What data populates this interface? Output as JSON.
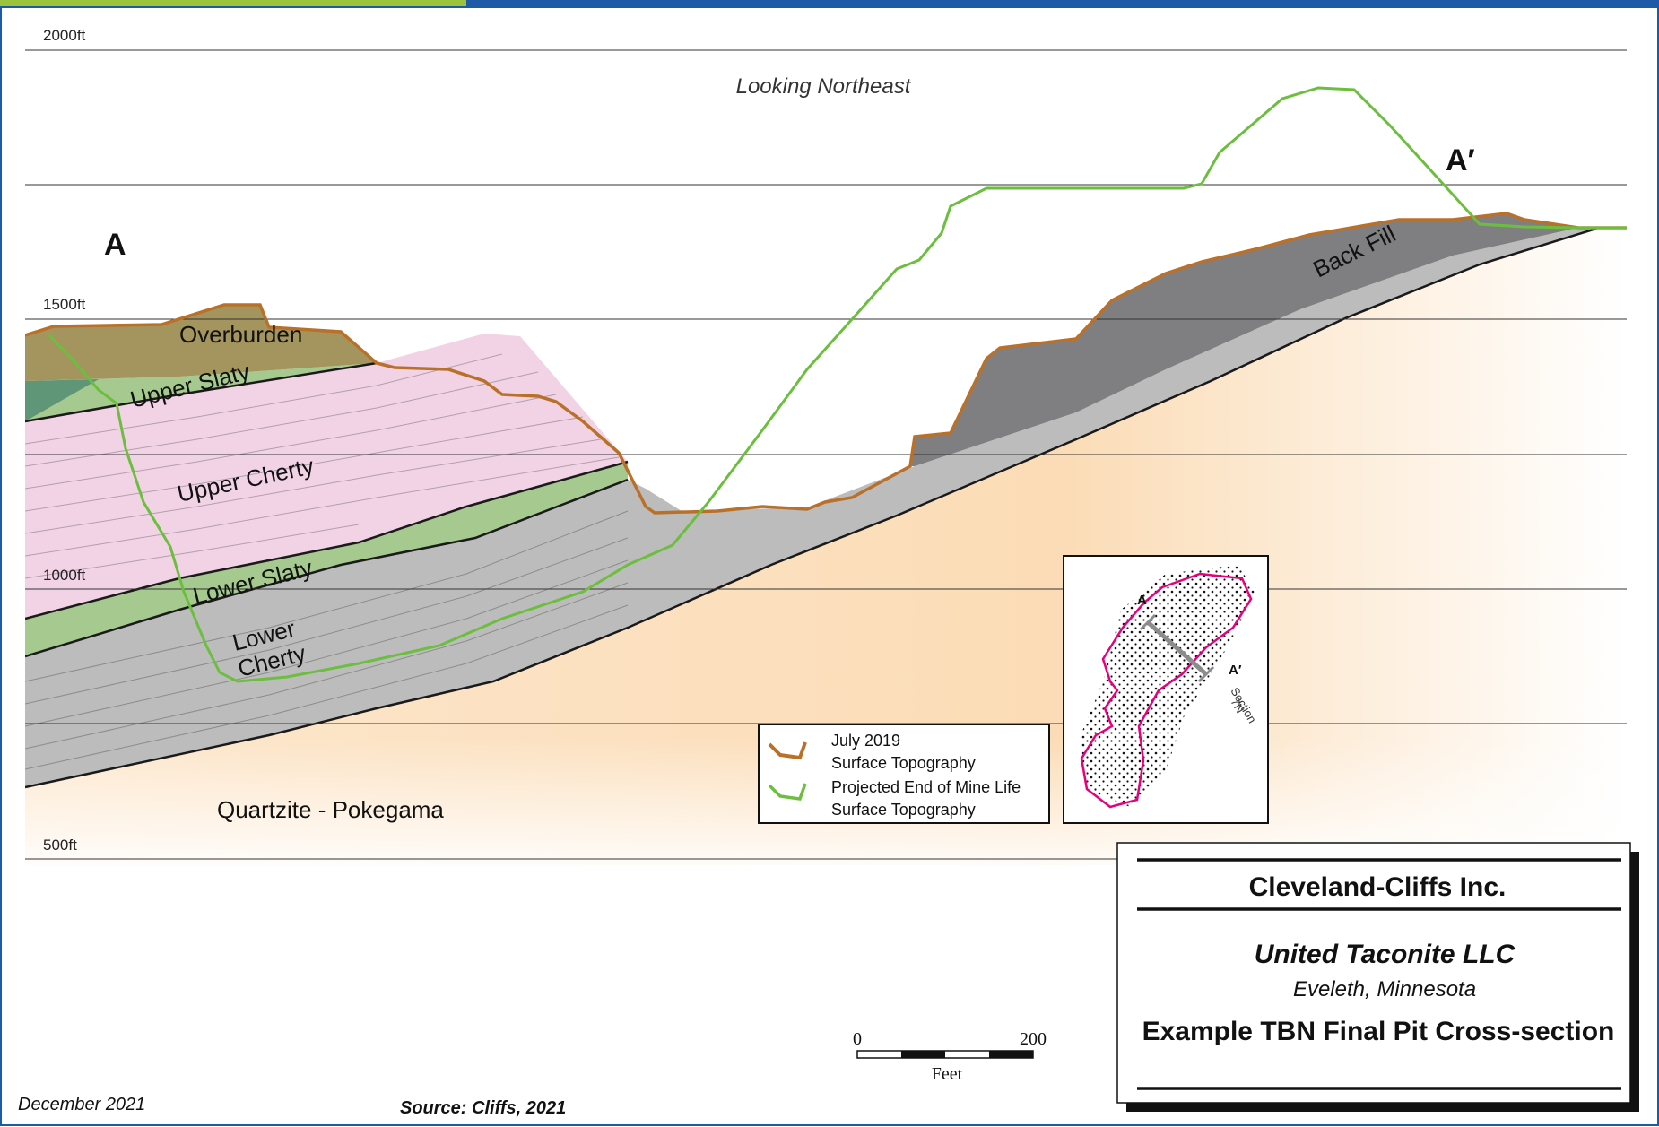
{
  "header_bar": {
    "colors": [
      "#9bc33c",
      "#1f5aa6"
    ]
  },
  "view_label": "Looking Northeast",
  "section_ends": {
    "start": "A",
    "end": "A′"
  },
  "elevations": [
    {
      "label": "2000ft",
      "value": 2000
    },
    {
      "label": "1500ft",
      "value": 1500
    },
    {
      "label": "1000ft",
      "value": 1000
    },
    {
      "label": "500ft",
      "value": 500
    }
  ],
  "units": [
    {
      "label": "Overburden",
      "color": "#a4955e"
    },
    {
      "label": "Upper Slaty",
      "color": "#a5c98e"
    },
    {
      "label": "Upper Cherty",
      "color": "#f2d3e6"
    },
    {
      "label": "Lower Slaty",
      "color": "#a5c98e"
    },
    {
      "label": "Lower\nCherty",
      "line1": "Lower",
      "line2": "Cherty",
      "color": "#bdbdbd"
    },
    {
      "label": "Back Fill",
      "color": "#7f7f82"
    },
    {
      "label": "Quartzite - Pokegama",
      "color": "#fbe3c4"
    }
  ],
  "legend": {
    "items": [
      {
        "line1": "July 2019",
        "line2": "Surface Topography",
        "color": "#b9712a"
      },
      {
        "line1": "Projected End of Mine Life",
        "line2": "Surface Topography",
        "color": "#6cbf3e"
      }
    ]
  },
  "inset_map": {
    "label_a": "A",
    "label_a_prime": "A′",
    "section_label_1": "Section",
    "section_label_2": "7N",
    "outline_color": "#e6007e"
  },
  "scale_bar": {
    "min_label": "0",
    "max_label": "200",
    "unit_label": "Feet"
  },
  "title_block": {
    "company": "Cleveland-Cliffs Inc.",
    "subsidiary": "United Taconite LLC",
    "location": "Eveleth, Minnesota",
    "title": "Example TBN Final Pit Cross-section"
  },
  "footer": {
    "date": "December 2021",
    "source": "Source: Cliffs, 2021"
  }
}
